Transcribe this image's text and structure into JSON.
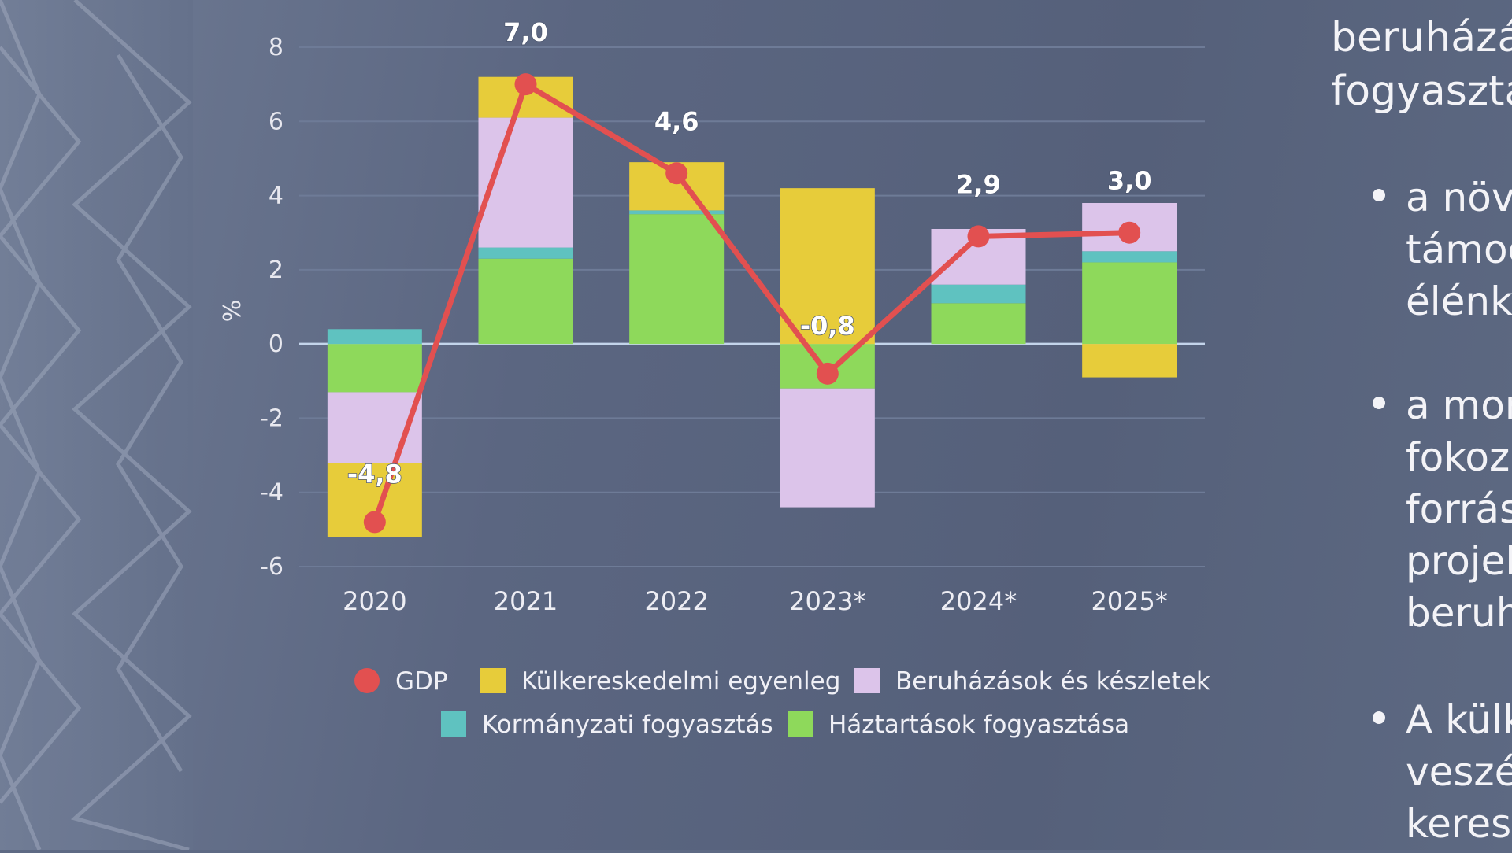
{
  "chart_data": {
    "type": "bar",
    "stacked": true,
    "categories": [
      "2020",
      "2021",
      "2022",
      "2023*",
      "2024*",
      "2025*"
    ],
    "ylabel": "%",
    "ylim": [
      -6,
      8
    ],
    "yticks": [
      "8",
      "6",
      "4",
      "2",
      "0",
      "-2",
      "-4",
      "-6"
    ],
    "grid": true,
    "legend_position": "bottom",
    "series": [
      {
        "name": "Háztartások fogyasztása",
        "color": "#8ed95b",
        "values": [
          -1.3,
          2.3,
          3.5,
          -1.2,
          1.1,
          2.2
        ]
      },
      {
        "name": "Kormányzati fogyasztás",
        "color": "#5fc2c0",
        "values": [
          0.4,
          0.3,
          0.1,
          0.0,
          0.5,
          0.3
        ]
      },
      {
        "name": "Beruházások és készletek",
        "color": "#dcc4ea",
        "values": [
          -1.9,
          3.5,
          0.0,
          -3.2,
          1.5,
          1.3
        ]
      },
      {
        "name": "Külkereskedelmi egyenleg",
        "color": "#e7cc3a",
        "values": [
          -2.0,
          1.1,
          1.3,
          4.2,
          0.0,
          -0.9
        ]
      }
    ],
    "line_series": {
      "name": "GDP",
      "color": "#e25050",
      "values": [
        -4.8,
        7.0,
        4.6,
        -0.8,
        2.9,
        3.0
      ]
    },
    "data_labels": [
      "-4,8",
      "7,0",
      "4,6",
      "-0,8",
      "2,9",
      "3,0"
    ]
  },
  "legend": [
    {
      "label": "GDP",
      "color": "#e25050",
      "marker": "circle"
    },
    {
      "label": "Külkereskedelmi egyenleg",
      "color": "#e7cc3a",
      "marker": "square"
    },
    {
      "label": "Beruházások és készletek",
      "color": "#dcc4ea",
      "marker": "square"
    },
    {
      "label": "Kormányzati fogyasztás",
      "color": "#5fc2c0",
      "marker": "square"
    },
    {
      "label": "Háztartások fogyasztása",
      "color": "#8ed95b",
      "marker": "square"
    }
  ],
  "side_text": {
    "line1": "beruházá",
    "line2": "fogyasztá",
    "bullet1": [
      "a növ",
      "támog",
      "élénkü"
    ],
    "bullet2": [
      "a mon",
      "fokoz",
      "forrás",
      "projek",
      "beruh"
    ],
    "bullet3": [
      "A külk",
      "veszé",
      "keresl"
    ]
  }
}
